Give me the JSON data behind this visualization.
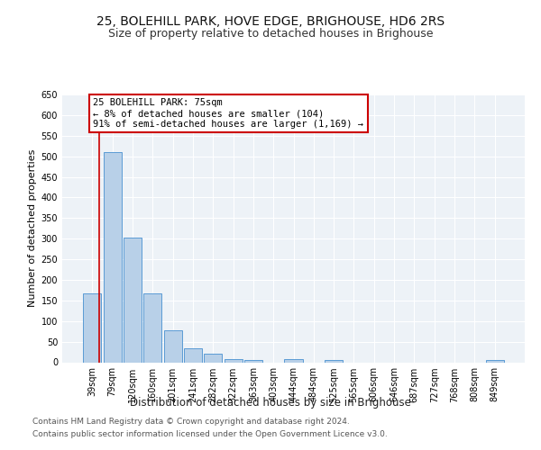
{
  "title": "25, BOLEHILL PARK, HOVE EDGE, BRIGHOUSE, HD6 2RS",
  "subtitle": "Size of property relative to detached houses in Brighouse",
  "xlabel": "Distribution of detached houses by size in Brighouse",
  "ylabel": "Number of detached properties",
  "categories": [
    "39sqm",
    "79sqm",
    "120sqm",
    "160sqm",
    "201sqm",
    "241sqm",
    "282sqm",
    "322sqm",
    "363sqm",
    "403sqm",
    "444sqm",
    "484sqm",
    "525sqm",
    "565sqm",
    "606sqm",
    "646sqm",
    "687sqm",
    "727sqm",
    "768sqm",
    "808sqm",
    "849sqm"
  ],
  "values": [
    168,
    510,
    303,
    168,
    78,
    33,
    20,
    8,
    5,
    0,
    8,
    0,
    5,
    0,
    0,
    0,
    0,
    0,
    0,
    0,
    5
  ],
  "bar_color": "#b8d0e8",
  "bar_edge_color": "#5b9bd5",
  "background_color": "#edf2f7",
  "grid_color": "#ffffff",
  "property_line_color": "#cc0000",
  "annotation_line1": "25 BOLEHILL PARK: 75sqm",
  "annotation_line2": "← 8% of detached houses are smaller (104)",
  "annotation_line3": "91% of semi-detached houses are larger (1,169) →",
  "annotation_box_facecolor": "#ffffff",
  "annotation_box_edgecolor": "#cc0000",
  "ylim_max": 650,
  "ytick_step": 50,
  "footer_line1": "Contains HM Land Registry data © Crown copyright and database right 2024.",
  "footer_line2": "Contains public sector information licensed under the Open Government Licence v3.0.",
  "title_fontsize": 10,
  "subtitle_fontsize": 9,
  "annotation_fontsize": 7.5,
  "ylabel_fontsize": 8,
  "tick_fontsize": 7,
  "footer_fontsize": 6.5,
  "xlabel_fontsize": 8.5
}
